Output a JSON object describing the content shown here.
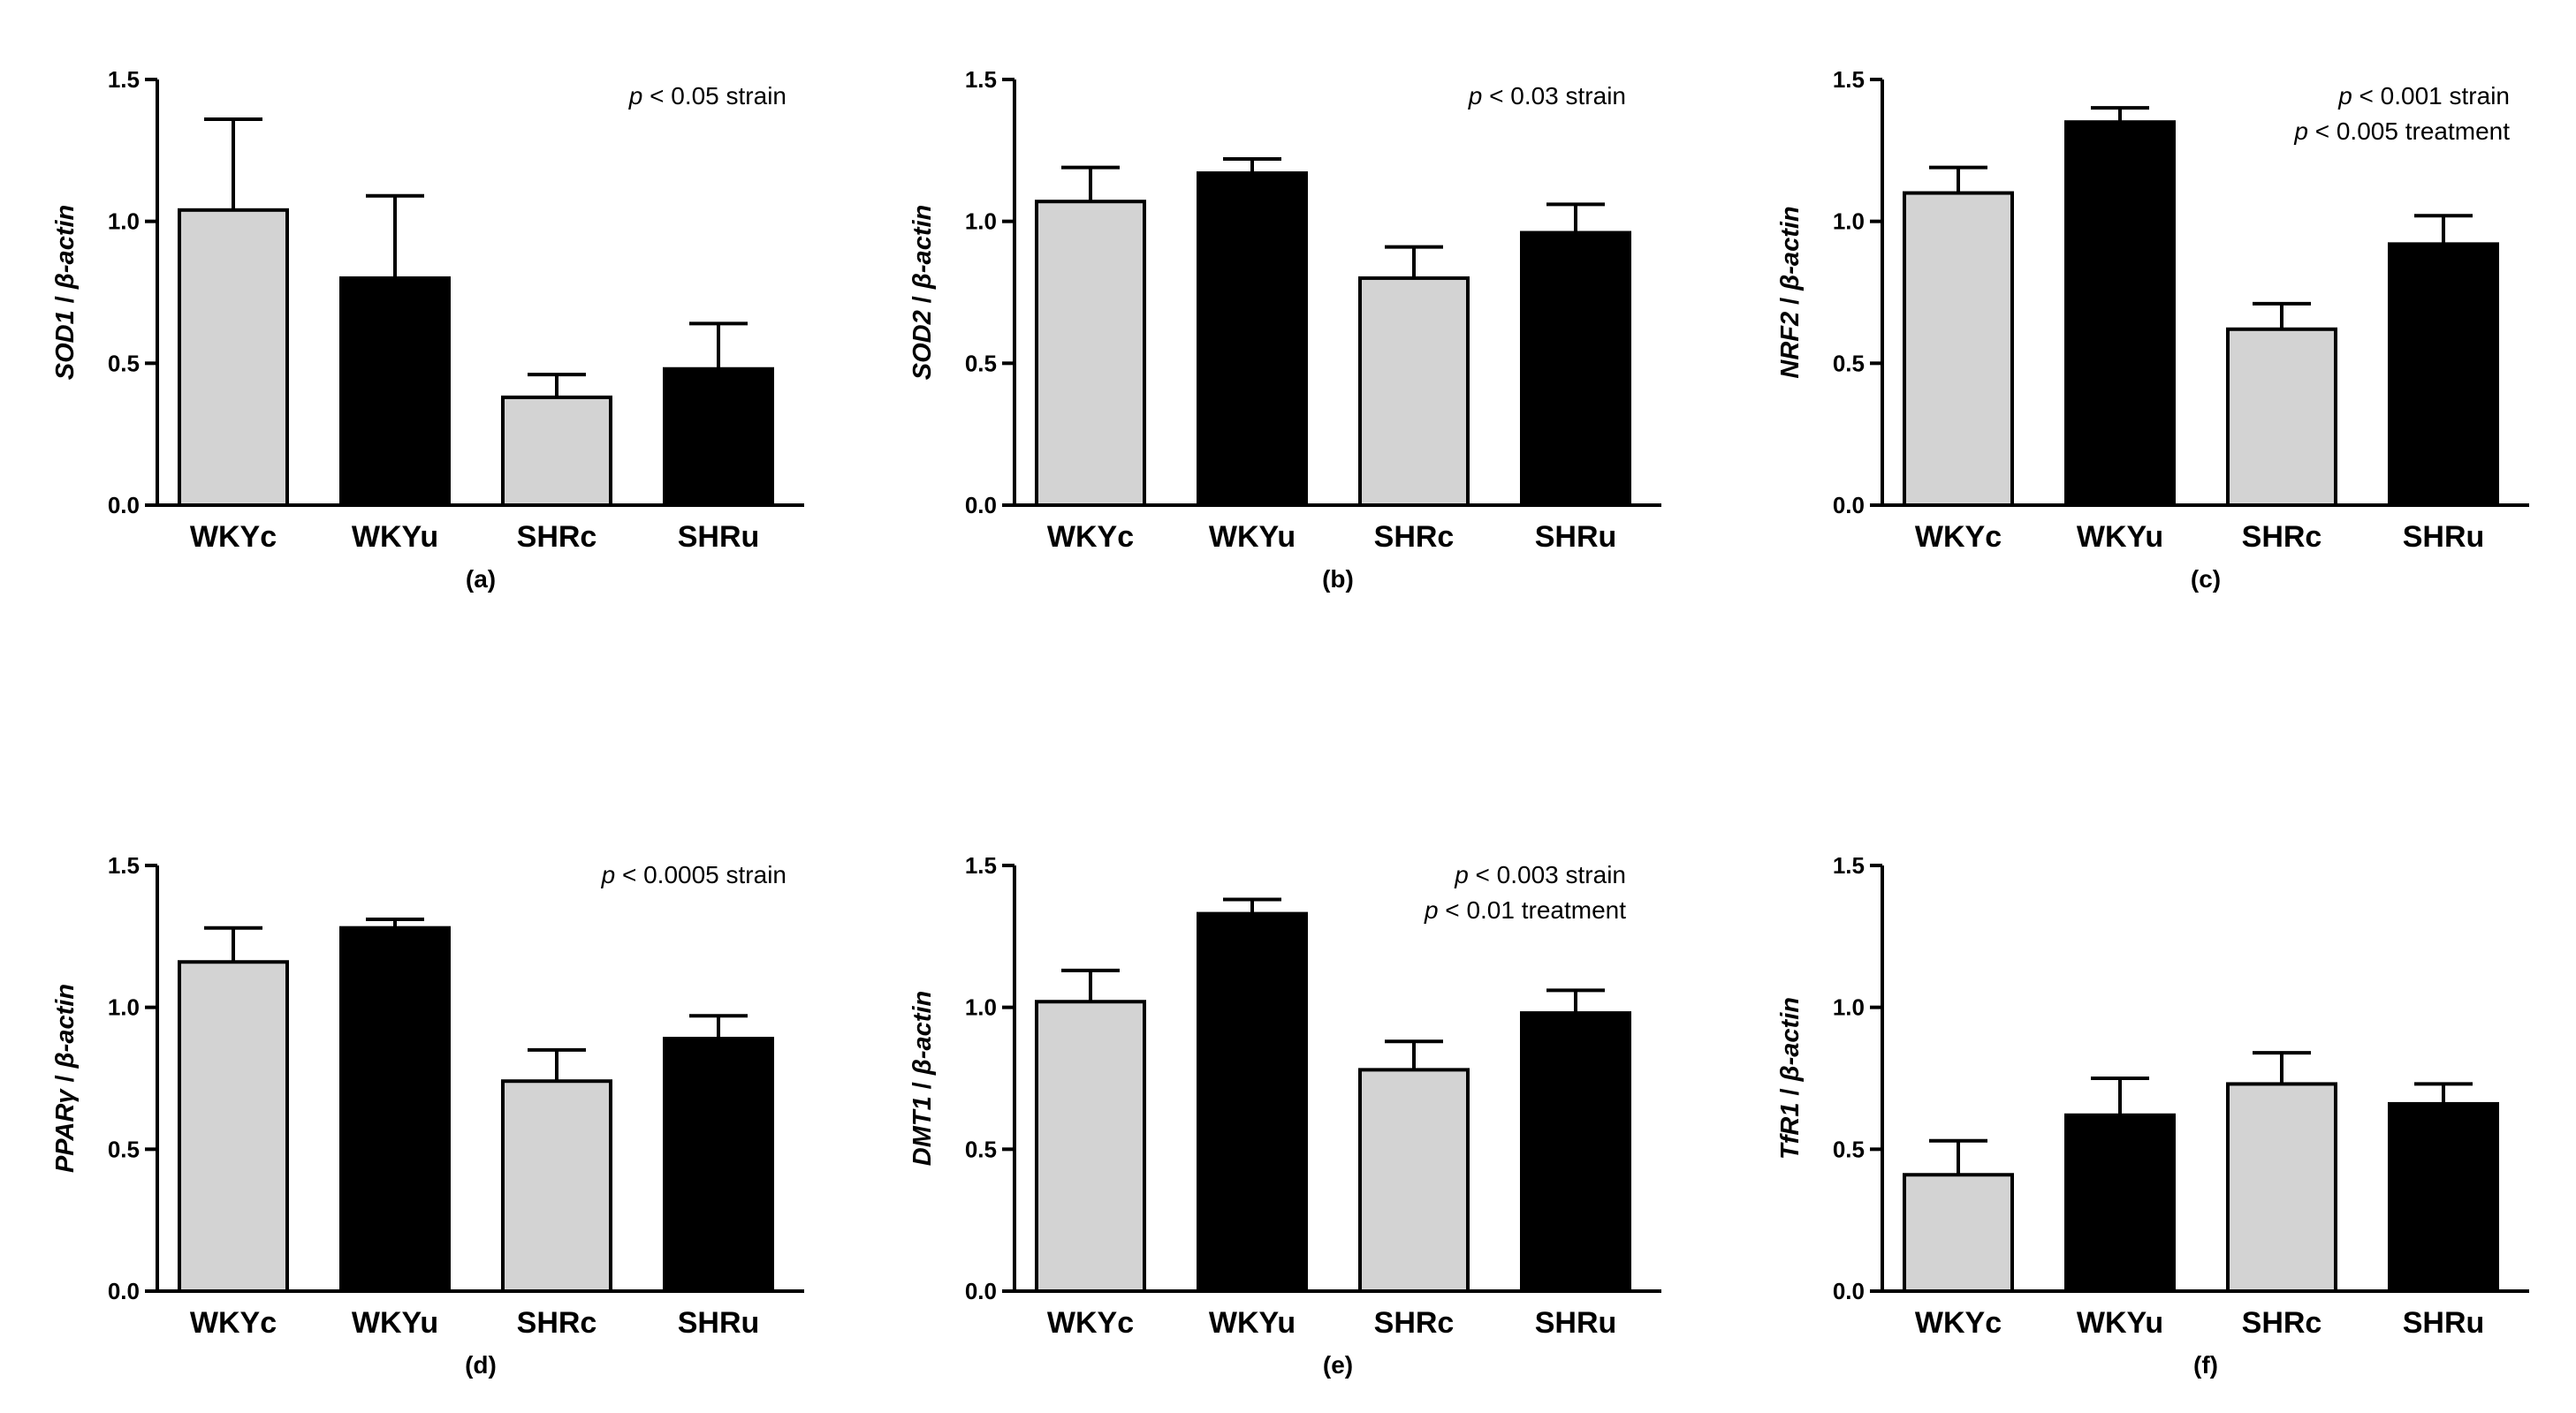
{
  "figure": {
    "colors": {
      "control": "#d3d3d3",
      "treated": "#000000",
      "axis": "#000000"
    }
  },
  "chart_data": [
    {
      "type": "bar",
      "panel": "(a)",
      "ylabel_gene": "SOD1",
      "ylabel_sep": " / ",
      "ylabel_ref": "β-actin",
      "categories": [
        "WKYc",
        "WKYu",
        "SHRc",
        "SHRu"
      ],
      "values": [
        1.04,
        0.8,
        0.38,
        0.48
      ],
      "errors": [
        0.32,
        0.29,
        0.08,
        0.16
      ],
      "ylim": [
        0,
        1.5
      ],
      "yticks": [
        "0.0",
        "0.5",
        "1.0",
        "1.5"
      ],
      "annotations": [
        {
          "p": "p",
          "rest": " < 0.05  strain"
        }
      ]
    },
    {
      "type": "bar",
      "panel": "(b)",
      "ylabel_gene": "SOD2",
      "ylabel_sep": " / ",
      "ylabel_ref": "β-actin",
      "categories": [
        "WKYc",
        "WKYu",
        "SHRc",
        "SHRu"
      ],
      "values": [
        1.07,
        1.17,
        0.8,
        0.96
      ],
      "errors": [
        0.12,
        0.05,
        0.11,
        0.1
      ],
      "ylim": [
        0,
        1.5
      ],
      "yticks": [
        "0.0",
        "0.5",
        "1.0",
        "1.5"
      ],
      "annotations": [
        {
          "p": "p",
          "rest": " < 0.03  strain"
        }
      ]
    },
    {
      "type": "bar",
      "panel": "(c)",
      "ylabel_gene": "NRF2",
      "ylabel_sep": " / ",
      "ylabel_ref": "β-actin",
      "categories": [
        "WKYc",
        "WKYu",
        "SHRc",
        "SHRu"
      ],
      "values": [
        1.1,
        1.35,
        0.62,
        0.92
      ],
      "errors": [
        0.09,
        0.05,
        0.09,
        0.1
      ],
      "ylim": [
        0,
        1.5
      ],
      "yticks": [
        "0.0",
        "0.5",
        "1.0",
        "1.5"
      ],
      "annotations": [
        {
          "p": "p",
          "rest": " < 0.001  strain"
        },
        {
          "p": "p",
          "rest": " < 0.005  treatment"
        }
      ]
    },
    {
      "type": "bar",
      "panel": "(d)",
      "ylabel_gene": "PPARγ",
      "ylabel_sep": " / ",
      "ylabel_ref": "β-actin",
      "categories": [
        "WKYc",
        "WKYu",
        "SHRc",
        "SHRu"
      ],
      "values": [
        1.16,
        1.28,
        0.74,
        0.89
      ],
      "errors": [
        0.12,
        0.03,
        0.11,
        0.08
      ],
      "ylim": [
        0,
        1.5
      ],
      "yticks": [
        "0.0",
        "0.5",
        "1.0",
        "1.5"
      ],
      "annotations": [
        {
          "p": "p",
          "rest": " < 0.0005  strain"
        }
      ]
    },
    {
      "type": "bar",
      "panel": "(e)",
      "ylabel_gene": "DMT1",
      "ylabel_sep": " / ",
      "ylabel_ref": "β-actin",
      "categories": [
        "WKYc",
        "WKYu",
        "SHRc",
        "SHRu"
      ],
      "values": [
        1.02,
        1.33,
        0.78,
        0.98
      ],
      "errors": [
        0.11,
        0.05,
        0.1,
        0.08
      ],
      "ylim": [
        0,
        1.5
      ],
      "yticks": [
        "0.0",
        "0.5",
        "1.0",
        "1.5"
      ],
      "annotations": [
        {
          "p": "p",
          "rest": " < 0.003  strain"
        },
        {
          "p": "p",
          "rest": " < 0.01 treatment"
        }
      ]
    },
    {
      "type": "bar",
      "panel": "(f)",
      "ylabel_gene": "TfR1",
      "ylabel_sep": " / ",
      "ylabel_ref": "β-actin",
      "categories": [
        "WKYc",
        "WKYu",
        "SHRc",
        "SHRu"
      ],
      "values": [
        0.41,
        0.62,
        0.73,
        0.66
      ],
      "errors": [
        0.12,
        0.13,
        0.11,
        0.07
      ],
      "ylim": [
        0,
        1.5
      ],
      "yticks": [
        "0.0",
        "0.5",
        "1.0",
        "1.5"
      ],
      "annotations": []
    }
  ]
}
